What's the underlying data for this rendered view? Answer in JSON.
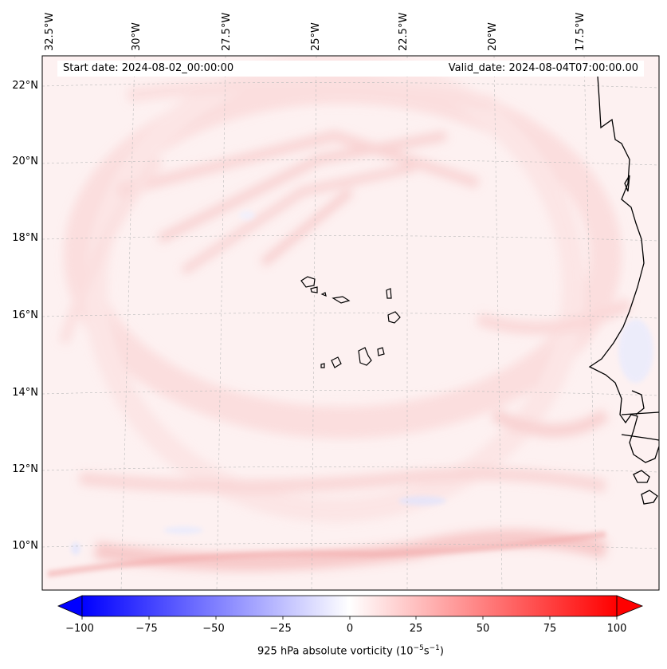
{
  "map": {
    "start_date": "Start date: 2024-08-02_00:00:00",
    "valid_date": "Valid_date: 2024-08-04T07:00:00.00",
    "longitude_labels": [
      "32.5°W",
      "30°W",
      "27.5°W",
      "25°W",
      "22.5°W",
      "20°W",
      "17.5°W"
    ],
    "latitude_labels": [
      "22°N",
      "20°N",
      "18°N",
      "16°N",
      "14°N",
      "12°N",
      "10°N"
    ],
    "field": "925 hPa absolute vorticity"
  },
  "colorbar": {
    "ticks": [
      "−100",
      "−75",
      "−50",
      "−25",
      "0",
      "25",
      "50",
      "75",
      "100"
    ],
    "label": "925 hPa absolute vorticity (10",
    "label_exp1": "−5",
    "label_mid": "s",
    "label_exp2": "−1",
    "label_end": ")",
    "min": -100,
    "max": 100,
    "cmap_low": "#0000ff",
    "cmap_mid": "#ffffff",
    "cmap_high": "#ff0000"
  },
  "colors": {
    "coastline": "#000000",
    "gridline": "#bbbbbb",
    "frame": "#000000"
  }
}
